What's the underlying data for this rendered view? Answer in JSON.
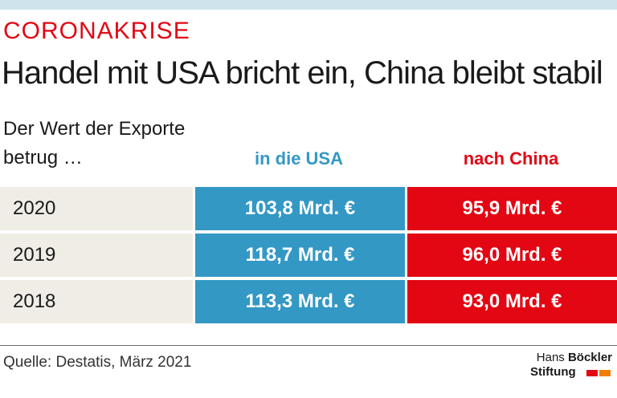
{
  "header": {
    "kicker": "CORONAKRISE",
    "headline": "Handel mit USA bricht ein, China bleibt stabil"
  },
  "table": {
    "intro_line1": "Der Wert der Exporte",
    "intro_line2": "betrug …",
    "col_usa": "in die USA",
    "col_china": "nach China",
    "rows": [
      {
        "year": "2020",
        "usa": "103,8 Mrd. €",
        "china": "95,9 Mrd. €"
      },
      {
        "year": "2019",
        "usa": "118,7 Mrd. €",
        "china": "96,0 Mrd. €"
      },
      {
        "year": "2018",
        "usa": "113,3 Mrd. €",
        "china": "93,0 Mrd. €"
      }
    ]
  },
  "footer": {
    "source": "Quelle: Destatis, März 2021",
    "logo_hans": "Hans",
    "logo_boeckler": "Böckler",
    "logo_stiftung": "Stiftung"
  },
  "colors": {
    "usa": "#3498c4",
    "china": "#e30613",
    "year_bg": "#efede5",
    "kicker": "#e30613"
  },
  "chart_data": {
    "type": "table",
    "title": "Handel mit USA bricht ein, China bleibt stabil",
    "subtitle": "Der Wert der Exporte betrug …",
    "columns": [
      "in die USA",
      "nach China"
    ],
    "categories": [
      "2020",
      "2019",
      "2018"
    ],
    "unit": "Mrd. €",
    "series": [
      {
        "name": "in die USA",
        "values": [
          103.8,
          118.7,
          113.3
        ]
      },
      {
        "name": "nach China",
        "values": [
          95.9,
          96.0,
          93.0
        ]
      }
    ]
  }
}
